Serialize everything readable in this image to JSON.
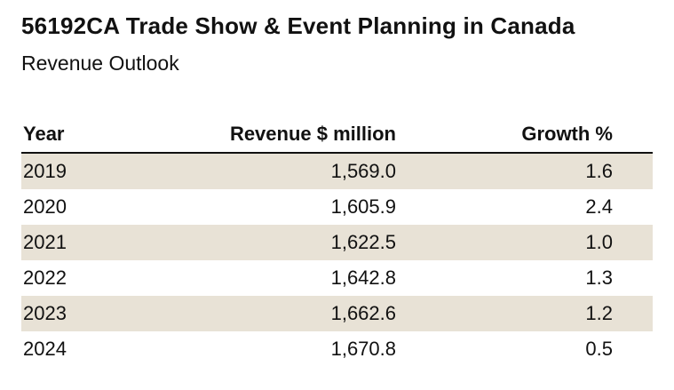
{
  "title": "56192CA Trade Show & Event Planning in Canada",
  "subtitle": "Revenue Outlook",
  "colors": {
    "band": "#e8e2d6",
    "rule": "#111111"
  },
  "chart_data": {
    "type": "table",
    "columns": [
      "Year",
      "Revenue $ million",
      "Growth %"
    ],
    "rows": [
      [
        "2019",
        "1,569.0",
        "1.6"
      ],
      [
        "2020",
        "1,605.9",
        "2.4"
      ],
      [
        "2021",
        "1,622.5",
        "1.0"
      ],
      [
        "2022",
        "1,642.8",
        "1.3"
      ],
      [
        "2023",
        "1,662.6",
        "1.2"
      ],
      [
        "2024",
        "1,670.8",
        "0.5"
      ]
    ]
  }
}
